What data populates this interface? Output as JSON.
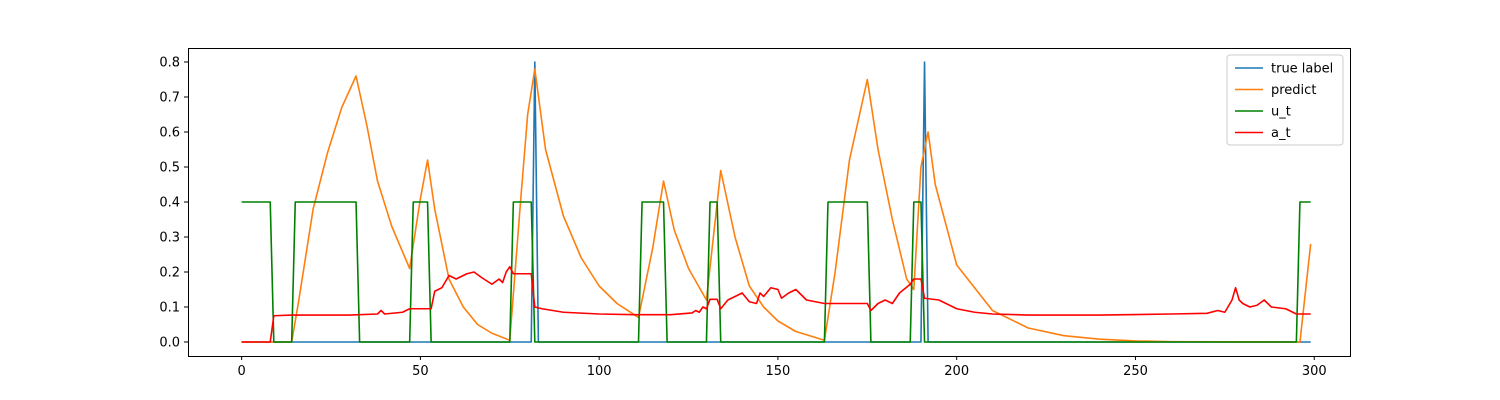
{
  "chart_data": {
    "type": "line",
    "title": "",
    "xlabel": "",
    "ylabel": "",
    "xlim": [
      -15,
      310
    ],
    "ylim": [
      -0.04,
      0.84
    ],
    "xticks": [
      0,
      50,
      100,
      150,
      200,
      250,
      300
    ],
    "xtick_labels": [
      "0",
      "50",
      "100",
      "150",
      "200",
      "250",
      "300"
    ],
    "yticks": [
      0.0,
      0.1,
      0.2,
      0.3,
      0.4,
      0.5,
      0.6,
      0.7,
      0.8
    ],
    "ytick_labels": [
      "0.0",
      "0.1",
      "0.2",
      "0.3",
      "0.4",
      "0.5",
      "0.6",
      "0.7",
      "0.8"
    ],
    "grid": false,
    "legend_position": "top-right",
    "series": [
      {
        "name": "true label",
        "color": "#1f77b4",
        "points": [
          [
            0,
            0
          ],
          [
            81,
            0
          ],
          [
            82,
            0.8
          ],
          [
            83,
            0
          ],
          [
            190,
            0
          ],
          [
            191,
            0.8
          ],
          [
            192,
            0
          ],
          [
            299,
            0
          ]
        ]
      },
      {
        "name": "predict",
        "color": "#ff7f0e",
        "points": [
          [
            0,
            0
          ],
          [
            14,
            0
          ],
          [
            16,
            0.12
          ],
          [
            20,
            0.38
          ],
          [
            24,
            0.54
          ],
          [
            28,
            0.67
          ],
          [
            32,
            0.76
          ],
          [
            35,
            0.62
          ],
          [
            38,
            0.46
          ],
          [
            42,
            0.33
          ],
          [
            47,
            0.21
          ],
          [
            50,
            0.41
          ],
          [
            52,
            0.52
          ],
          [
            54,
            0.38
          ],
          [
            58,
            0.18
          ],
          [
            62,
            0.1
          ],
          [
            66,
            0.05
          ],
          [
            70,
            0.025
          ],
          [
            75,
            0.005
          ],
          [
            78,
            0.4
          ],
          [
            80,
            0.65
          ],
          [
            82,
            0.78
          ],
          [
            85,
            0.55
          ],
          [
            90,
            0.36
          ],
          [
            95,
            0.24
          ],
          [
            100,
            0.16
          ],
          [
            105,
            0.11
          ],
          [
            111,
            0.07
          ],
          [
            115,
            0.27
          ],
          [
            118,
            0.46
          ],
          [
            121,
            0.32
          ],
          [
            125,
            0.21
          ],
          [
            130,
            0.12
          ],
          [
            134,
            0.49
          ],
          [
            138,
            0.3
          ],
          [
            142,
            0.16
          ],
          [
            146,
            0.1
          ],
          [
            150,
            0.06
          ],
          [
            155,
            0.03
          ],
          [
            163,
            0.005
          ],
          [
            166,
            0.2
          ],
          [
            170,
            0.52
          ],
          [
            175,
            0.75
          ],
          [
            178,
            0.55
          ],
          [
            182,
            0.35
          ],
          [
            186,
            0.18
          ],
          [
            188,
            0.15
          ],
          [
            190,
            0.5
          ],
          [
            192,
            0.6
          ],
          [
            194,
            0.45
          ],
          [
            200,
            0.22
          ],
          [
            210,
            0.09
          ],
          [
            220,
            0.04
          ],
          [
            230,
            0.018
          ],
          [
            240,
            0.008
          ],
          [
            250,
            0.003
          ],
          [
            260,
            0.001
          ],
          [
            296,
            0
          ],
          [
            299,
            0.28
          ]
        ]
      },
      {
        "name": "u_t",
        "color": "#008000",
        "points": [
          [
            0,
            0.4
          ],
          [
            8,
            0.4
          ],
          [
            9,
            0
          ],
          [
            14,
            0
          ],
          [
            15,
            0.4
          ],
          [
            32,
            0.4
          ],
          [
            33,
            0
          ],
          [
            47,
            0
          ],
          [
            48,
            0.4
          ],
          [
            52,
            0.4
          ],
          [
            53,
            0
          ],
          [
            75,
            0
          ],
          [
            76,
            0.4
          ],
          [
            81,
            0.4
          ],
          [
            82,
            0
          ],
          [
            111,
            0
          ],
          [
            112,
            0.4
          ],
          [
            118,
            0.4
          ],
          [
            119,
            0
          ],
          [
            130,
            0
          ],
          [
            131,
            0.4
          ],
          [
            133,
            0.4
          ],
          [
            134,
            0
          ],
          [
            163,
            0
          ],
          [
            164,
            0.4
          ],
          [
            175,
            0.4
          ],
          [
            176,
            0
          ],
          [
            187,
            0
          ],
          [
            188,
            0.4
          ],
          [
            190,
            0.4
          ],
          [
            191,
            0
          ],
          [
            295,
            0
          ],
          [
            296,
            0.4
          ],
          [
            299,
            0.4
          ]
        ]
      },
      {
        "name": "a_t",
        "color": "#ff0000",
        "points": [
          [
            0,
            0
          ],
          [
            8,
            0
          ],
          [
            9,
            0.075
          ],
          [
            14,
            0.077
          ],
          [
            30,
            0.077
          ],
          [
            38,
            0.08
          ],
          [
            39,
            0.09
          ],
          [
            40,
            0.08
          ],
          [
            45,
            0.085
          ],
          [
            47,
            0.095
          ],
          [
            53,
            0.095
          ],
          [
            54,
            0.145
          ],
          [
            56,
            0.155
          ],
          [
            58,
            0.19
          ],
          [
            60,
            0.18
          ],
          [
            63,
            0.195
          ],
          [
            65,
            0.2
          ],
          [
            67,
            0.185
          ],
          [
            70,
            0.165
          ],
          [
            72,
            0.18
          ],
          [
            73,
            0.17
          ],
          [
            74,
            0.2
          ],
          [
            75,
            0.215
          ],
          [
            76,
            0.195
          ],
          [
            81,
            0.195
          ],
          [
            82,
            0.1
          ],
          [
            84,
            0.095
          ],
          [
            90,
            0.085
          ],
          [
            100,
            0.08
          ],
          [
            110,
            0.078
          ],
          [
            120,
            0.078
          ],
          [
            126,
            0.083
          ],
          [
            127,
            0.09
          ],
          [
            128,
            0.085
          ],
          [
            129,
            0.1
          ],
          [
            130,
            0.095
          ],
          [
            131,
            0.122
          ],
          [
            133,
            0.122
          ],
          [
            134,
            0.095
          ],
          [
            136,
            0.12
          ],
          [
            140,
            0.14
          ],
          [
            142,
            0.115
          ],
          [
            144,
            0.11
          ],
          [
            145,
            0.14
          ],
          [
            146,
            0.13
          ],
          [
            148,
            0.155
          ],
          [
            150,
            0.15
          ],
          [
            151,
            0.125
          ],
          [
            153,
            0.14
          ],
          [
            155,
            0.15
          ],
          [
            157,
            0.13
          ],
          [
            158,
            0.12
          ],
          [
            163,
            0.11
          ],
          [
            175,
            0.11
          ],
          [
            176,
            0.09
          ],
          [
            178,
            0.11
          ],
          [
            180,
            0.12
          ],
          [
            182,
            0.11
          ],
          [
            184,
            0.14
          ],
          [
            187,
            0.165
          ],
          [
            188,
            0.18
          ],
          [
            190,
            0.18
          ],
          [
            191,
            0.125
          ],
          [
            195,
            0.12
          ],
          [
            200,
            0.095
          ],
          [
            205,
            0.085
          ],
          [
            210,
            0.08
          ],
          [
            220,
            0.077
          ],
          [
            240,
            0.077
          ],
          [
            260,
            0.08
          ],
          [
            270,
            0.082
          ],
          [
            273,
            0.09
          ],
          [
            275,
            0.085
          ],
          [
            277,
            0.12
          ],
          [
            278,
            0.155
          ],
          [
            279,
            0.12
          ],
          [
            280,
            0.11
          ],
          [
            282,
            0.1
          ],
          [
            284,
            0.105
          ],
          [
            286,
            0.12
          ],
          [
            288,
            0.1
          ],
          [
            292,
            0.095
          ],
          [
            295,
            0.08
          ],
          [
            299,
            0.08
          ]
        ]
      }
    ]
  }
}
